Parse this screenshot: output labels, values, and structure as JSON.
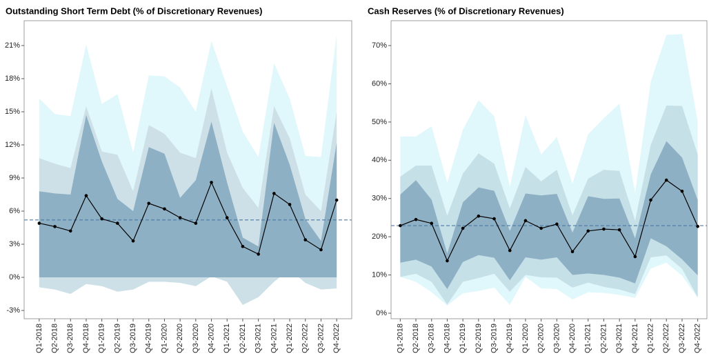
{
  "chart_data": [
    {
      "type": "band-line",
      "title": "Outstanding Short Term Debt (% of Discretionary Revenues)",
      "categories": [
        "Q1-2018",
        "Q2-2018",
        "Q3-2018",
        "Q4-2018",
        "Q1-2019",
        "Q2-2019",
        "Q3-2019",
        "Q4-2019",
        "Q1-2020",
        "Q2-2020",
        "Q3-2020",
        "Q4-2020",
        "Q1-2021",
        "Q2-2021",
        "Q3-2021",
        "Q4-2021",
        "Q1-2022",
        "Q2-2022",
        "Q3-2022",
        "Q4-2022"
      ],
      "bands": [
        {
          "color": "#e0f7fb",
          "lower": [
            -0.9,
            -1.1,
            -1.5,
            -0.6,
            -0.8,
            -1.3,
            -1.1,
            -0.4,
            -0.4,
            -0.5,
            -0.8,
            0.1,
            -0.4,
            -2.5,
            -1.8,
            -0.4,
            0.7,
            -0.5,
            -1.1,
            -1.0
          ],
          "upper": [
            16.2,
            14.8,
            14.6,
            21.1,
            15.7,
            16.6,
            11.3,
            18.3,
            18.2,
            17.2,
            15.0,
            21.4,
            17.3,
            13.2,
            10.9,
            19.4,
            16.2,
            11.0,
            10.9,
            22.0
          ]
        },
        {
          "color": "#cde0e7",
          "lower": [
            -0.9,
            -1.1,
            -1.5,
            -0.6,
            -0.8,
            -1.3,
            -1.1,
            -0.4,
            -0.4,
            -0.5,
            -0.8,
            0.1,
            -0.4,
            -2.5,
            -1.8,
            -0.4,
            0.7,
            -0.5,
            -1.1,
            -1.0
          ],
          "upper": [
            10.8,
            10.3,
            9.9,
            15.5,
            11.4,
            11.1,
            7.8,
            13.8,
            13.0,
            11.3,
            10.8,
            17.1,
            11.3,
            8.1,
            6.3,
            15.5,
            12.6,
            7.5,
            6.0,
            15.0
          ]
        },
        {
          "color": "#8eb0c4",
          "lower": [
            0,
            0,
            0,
            0,
            0,
            0,
            0,
            0,
            0,
            0,
            0,
            0,
            0,
            0,
            0,
            0,
            0,
            0,
            0,
            0
          ],
          "upper": [
            7.8,
            7.6,
            7.5,
            14.7,
            10.5,
            7.1,
            6.0,
            11.8,
            11.2,
            7.2,
            8.8,
            14.1,
            8.6,
            3.6,
            2.8,
            14.0,
            10.2,
            5.3,
            3.3,
            12.2
          ]
        }
      ],
      "values": [
        4.9,
        4.6,
        4.2,
        7.4,
        5.3,
        4.9,
        3.3,
        6.7,
        6.2,
        5.4,
        4.9,
        8.6,
        5.4,
        2.8,
        2.1,
        7.6,
        6.6,
        3.4,
        2.5,
        7.0
      ],
      "color": "#000000",
      "reference_line": 5.2,
      "reference_color": "#4a78a8",
      "ylim": [
        -3.75,
        23.25
      ],
      "yticks": [
        {
          "value": -3,
          "label": "-3%"
        },
        {
          "value": 0,
          "label": "0%"
        },
        {
          "value": 3,
          "label": "3%"
        },
        {
          "value": 6,
          "label": "6%"
        },
        {
          "value": 9,
          "label": "9%"
        },
        {
          "value": 12,
          "label": "12%"
        },
        {
          "value": 15,
          "label": "15%"
        },
        {
          "value": 18,
          "label": "18%"
        },
        {
          "value": 21,
          "label": "21%"
        }
      ]
    },
    {
      "type": "band-line",
      "title": "Cash Reserves (% of Discretionary Revenues)",
      "categories": [
        "Q1-2018",
        "Q2-2018",
        "Q3-2018",
        "Q4-2018",
        "Q1-2019",
        "Q2-2019",
        "Q3-2019",
        "Q4-2019",
        "Q1-2020",
        "Q2-2020",
        "Q3-2020",
        "Q4-2020",
        "Q1-2021",
        "Q2-2021",
        "Q3-2021",
        "Q4-2021",
        "Q1-2022",
        "Q2-2022",
        "Q3-2022",
        "Q4-2022"
      ],
      "bands": [
        {
          "color": "#e0f7fb",
          "lower": [
            9.5,
            8.2,
            5.5,
            2.0,
            5.2,
            5.8,
            6.7,
            2.2,
            9.5,
            6.5,
            6.3,
            3.6,
            5.5,
            5.3,
            4.8,
            4.0,
            11.7,
            13.2,
            9.8,
            4.0
          ],
          "upper": [
            46.2,
            46.2,
            48.9,
            34.1,
            48.0,
            55.7,
            51.5,
            33.0,
            51.8,
            41.5,
            46.1,
            33.9,
            46.8,
            51.0,
            54.8,
            31.4,
            60.6,
            72.8,
            73.0,
            50.1
          ]
        },
        {
          "color": "#c6e0e8",
          "lower": [
            9.5,
            10.3,
            8.2,
            2.3,
            8.2,
            9.2,
            10.3,
            5.6,
            10.0,
            9.4,
            9.3,
            6.7,
            8.0,
            6.9,
            6.2,
            5.0,
            14.6,
            15.1,
            11.6,
            4.2
          ],
          "upper": [
            35.7,
            38.6,
            38.6,
            25.5,
            36.5,
            41.8,
            39.1,
            27.4,
            38.2,
            34.5,
            37.5,
            25.6,
            35.2,
            37.5,
            37.2,
            24.2,
            44.0,
            54.3,
            54.2,
            41.5
          ]
        },
        {
          "color": "#8eb0c4",
          "lower": [
            13.2,
            14.0,
            12.2,
            6.3,
            13.4,
            15.2,
            14.5,
            8.6,
            14.6,
            14.0,
            14.6,
            10.0,
            10.4,
            10.0,
            9.3,
            7.8,
            19.6,
            17.5,
            14.1,
            9.9
          ],
          "upper": [
            31.0,
            34.8,
            29.7,
            15.6,
            29.0,
            32.9,
            32.0,
            21.5,
            31.3,
            30.8,
            31.2,
            21.1,
            30.6,
            29.9,
            30.0,
            19.6,
            36.3,
            45.0,
            40.7,
            29.6
          ]
        }
      ],
      "values": [
        22.9,
        24.5,
        23.5,
        13.7,
        22.2,
        25.4,
        24.7,
        16.4,
        24.2,
        22.2,
        23.3,
        16.1,
        21.5,
        22.0,
        21.8,
        14.8,
        29.6,
        34.8,
        31.9,
        22.7
      ],
      "color": "#000000",
      "reference_line": 22.9,
      "reference_color": "#4a78a8",
      "ylim": [
        -1.45,
        76.5
      ],
      "yticks": [
        {
          "value": 0,
          "label": "0%"
        },
        {
          "value": 10,
          "label": "10%"
        },
        {
          "value": 20,
          "label": "20%"
        },
        {
          "value": 30,
          "label": "30%"
        },
        {
          "value": 40,
          "label": "40%"
        },
        {
          "value": 50,
          "label": "50%"
        },
        {
          "value": 60,
          "label": "60%"
        },
        {
          "value": 70,
          "label": "70%"
        }
      ]
    }
  ]
}
